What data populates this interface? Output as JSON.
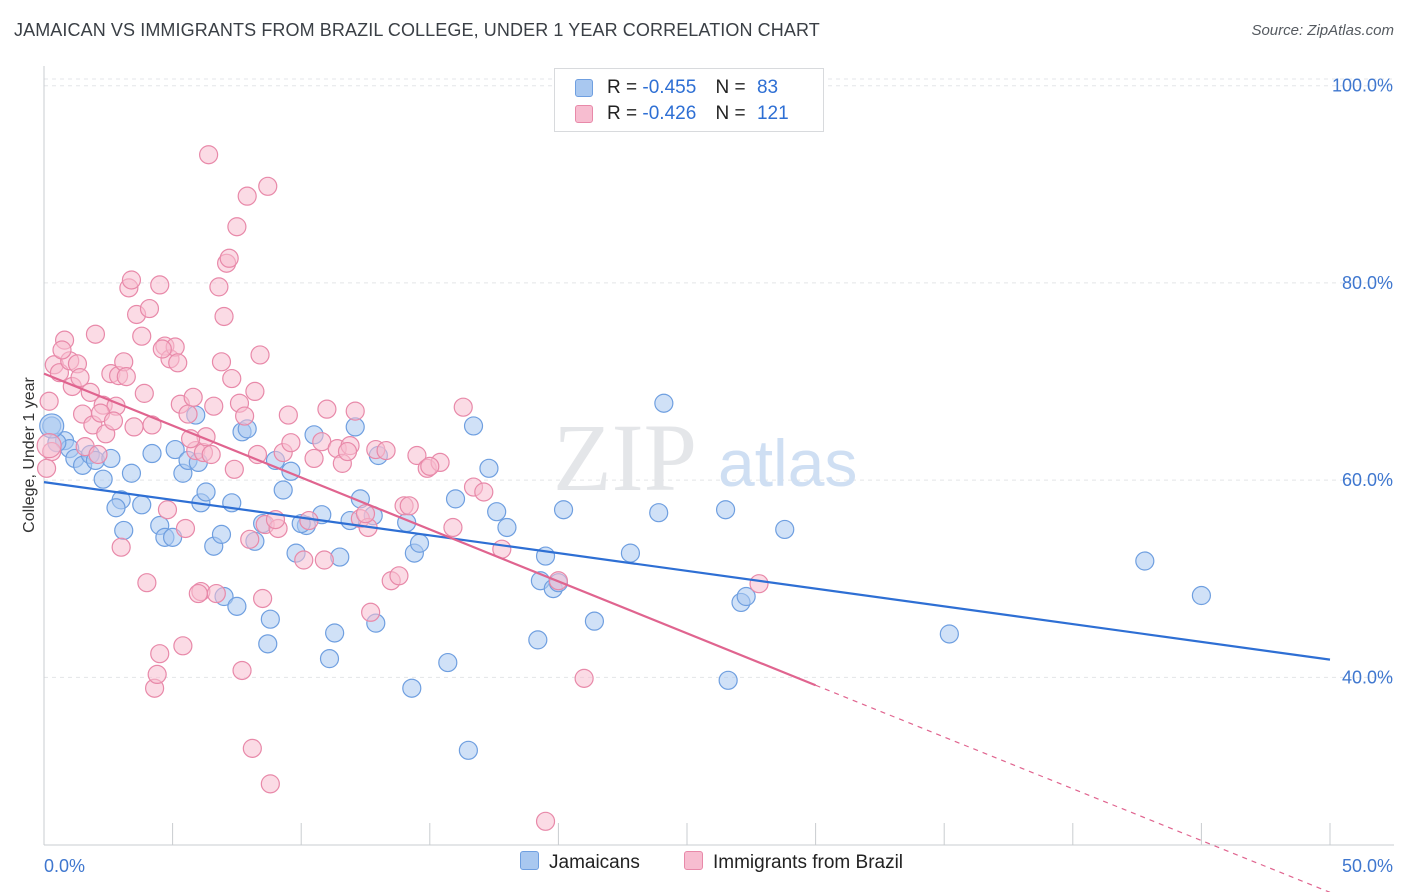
{
  "title": "JAMAICAN VS IMMIGRANTS FROM BRAZIL COLLEGE, UNDER 1 YEAR CORRELATION CHART",
  "source": "Source: ZipAtlas.com",
  "watermark": {
    "zip": "ZIP",
    "atlas": "atlas"
  },
  "legend": {
    "rows": [
      {
        "r_label": "R =",
        "r_value": "-0.455",
        "n_label": "N =",
        "n_value": "83",
        "color": "#a9c8f0",
        "border": "#6f9fe0"
      },
      {
        "r_label": "R =",
        "r_value": "-0.426",
        "n_label": "N =",
        "n_value": "121",
        "color": "#f7bdd0",
        "border": "#e889a9"
      }
    ]
  },
  "bottom_legend": [
    {
      "label": "Jamaicans",
      "color": "#a9c8f0",
      "border": "#6f9fe0"
    },
    {
      "label": "Immigrants from Brazil",
      "color": "#f7bdd0",
      "border": "#e889a9"
    }
  ],
  "chart_data": {
    "type": "scatter",
    "title": "JAMAICAN VS IMMIGRANTS FROM BRAZIL COLLEGE, UNDER 1 YEAR CORRELATION CHART",
    "xlabel": "",
    "ylabel": "College, Under 1 year",
    "xlim": [
      0,
      50
    ],
    "ylim": [
      23,
      102
    ],
    "x_tick_labels": [
      "0.0%",
      "50.0%"
    ],
    "y_ticks": [
      40,
      60,
      80,
      100
    ],
    "y_tick_labels": [
      "40.0%",
      "60.0%",
      "80.0%",
      "100.0%"
    ],
    "grid": true,
    "series": [
      {
        "name": "Jamaicans",
        "color": "#6f9fe0",
        "fill": "#a9c8f0",
        "line_color": "#2e6fd4",
        "trend": {
          "x0": 0,
          "y0": 59.8,
          "x1": 50,
          "y1": 41.8
        },
        "points": [
          [
            0.3,
            65.5
          ],
          [
            0.8,
            64.0
          ],
          [
            1.0,
            63.2
          ],
          [
            1.2,
            62.2
          ],
          [
            1.5,
            61.5
          ],
          [
            1.8,
            62.6
          ],
          [
            2.0,
            62.0
          ],
          [
            2.3,
            60.1
          ],
          [
            2.6,
            62.2
          ],
          [
            3.0,
            58.0
          ],
          [
            3.4,
            60.7
          ],
          [
            3.1,
            54.9
          ],
          [
            3.8,
            57.5
          ],
          [
            4.2,
            62.7
          ],
          [
            4.5,
            55.4
          ],
          [
            4.7,
            54.2
          ],
          [
            5.0,
            54.2
          ],
          [
            5.1,
            63.1
          ],
          [
            5.4,
            60.7
          ],
          [
            5.6,
            62.0
          ],
          [
            5.9,
            66.6
          ],
          [
            6.1,
            57.7
          ],
          [
            6.3,
            58.8
          ],
          [
            6.6,
            53.3
          ],
          [
            6.9,
            54.5
          ],
          [
            7.0,
            48.2
          ],
          [
            7.3,
            57.7
          ],
          [
            7.5,
            47.2
          ],
          [
            7.7,
            64.9
          ],
          [
            7.9,
            65.2
          ],
          [
            8.2,
            53.8
          ],
          [
            8.5,
            55.6
          ],
          [
            8.7,
            43.4
          ],
          [
            8.8,
            45.9
          ],
          [
            9.0,
            62.0
          ],
          [
            9.3,
            59.0
          ],
          [
            9.6,
            60.9
          ],
          [
            9.8,
            52.6
          ],
          [
            10.2,
            55.4
          ],
          [
            10.5,
            64.6
          ],
          [
            10.8,
            56.5
          ],
          [
            11.1,
            41.9
          ],
          [
            11.3,
            44.5
          ],
          [
            11.5,
            52.2
          ],
          [
            11.9,
            55.9
          ],
          [
            12.1,
            65.4
          ],
          [
            12.3,
            58.1
          ],
          [
            12.8,
            56.4
          ],
          [
            13.0,
            62.5
          ],
          [
            12.9,
            45.5
          ],
          [
            14.1,
            55.7
          ],
          [
            14.4,
            52.6
          ],
          [
            14.6,
            53.6
          ],
          [
            14.3,
            38.9
          ],
          [
            15.7,
            41.5
          ],
          [
            16.0,
            58.1
          ],
          [
            16.5,
            32.6
          ],
          [
            16.7,
            65.5
          ],
          [
            17.3,
            61.2
          ],
          [
            17.6,
            56.8
          ],
          [
            19.2,
            43.8
          ],
          [
            19.3,
            49.8
          ],
          [
            19.5,
            52.3
          ],
          [
            19.8,
            49.0
          ],
          [
            20.0,
            49.6
          ],
          [
            20.2,
            57.0
          ],
          [
            21.4,
            45.7
          ],
          [
            22.8,
            52.6
          ],
          [
            23.9,
            56.7
          ],
          [
            24.1,
            67.8
          ],
          [
            26.5,
            57.0
          ],
          [
            26.6,
            39.7
          ],
          [
            27.1,
            47.6
          ],
          [
            27.3,
            48.2
          ],
          [
            28.8,
            55.0
          ],
          [
            35.2,
            44.4
          ],
          [
            42.8,
            51.8
          ],
          [
            45.0,
            48.3
          ],
          [
            2.8,
            57.2
          ],
          [
            6.0,
            61.8
          ],
          [
            10.0,
            55.6
          ],
          [
            18.0,
            55.2
          ],
          [
            0.5,
            63.8
          ]
        ]
      },
      {
        "name": "Immigrants from Brazil",
        "color": "#e889a9",
        "fill": "#f7bdd0",
        "line_color": "#e0648f",
        "trend": {
          "x0": 0,
          "y0": 70.8,
          "x1": 30,
          "y1": 39.2
        },
        "trend_dashed": {
          "x0": 30,
          "y0": 39.2,
          "x1": 50,
          "y1": 18.2
        },
        "points": [
          [
            0.2,
            68.0
          ],
          [
            0.4,
            71.7
          ],
          [
            0.6,
            70.9
          ],
          [
            0.8,
            74.2
          ],
          [
            1.0,
            72.1
          ],
          [
            1.1,
            69.5
          ],
          [
            1.3,
            71.8
          ],
          [
            1.5,
            66.7
          ],
          [
            1.6,
            63.4
          ],
          [
            1.8,
            68.9
          ],
          [
            1.9,
            65.6
          ],
          [
            2.0,
            74.8
          ],
          [
            2.1,
            62.6
          ],
          [
            2.3,
            67.6
          ],
          [
            2.4,
            64.7
          ],
          [
            2.6,
            70.8
          ],
          [
            2.8,
            67.5
          ],
          [
            2.9,
            70.6
          ],
          [
            3.0,
            53.2
          ],
          [
            3.1,
            72.0
          ],
          [
            3.3,
            79.5
          ],
          [
            3.4,
            80.3
          ],
          [
            3.6,
            76.8
          ],
          [
            3.8,
            74.6
          ],
          [
            3.9,
            68.8
          ],
          [
            4.0,
            49.6
          ],
          [
            4.1,
            77.4
          ],
          [
            4.2,
            65.6
          ],
          [
            4.3,
            38.9
          ],
          [
            4.4,
            40.3
          ],
          [
            4.5,
            42.4
          ],
          [
            4.5,
            79.8
          ],
          [
            4.7,
            73.6
          ],
          [
            4.9,
            72.3
          ],
          [
            5.1,
            73.5
          ],
          [
            5.2,
            71.9
          ],
          [
            5.3,
            67.7
          ],
          [
            5.4,
            43.2
          ],
          [
            5.5,
            55.1
          ],
          [
            5.6,
            66.7
          ],
          [
            5.8,
            68.4
          ],
          [
            5.9,
            63.0
          ],
          [
            6.1,
            48.7
          ],
          [
            6.2,
            62.8
          ],
          [
            6.3,
            64.4
          ],
          [
            6.4,
            93.0
          ],
          [
            6.6,
            67.5
          ],
          [
            6.7,
            48.5
          ],
          [
            6.8,
            79.6
          ],
          [
            6.9,
            72.0
          ],
          [
            7.0,
            76.6
          ],
          [
            7.1,
            82.0
          ],
          [
            7.2,
            82.5
          ],
          [
            7.4,
            61.1
          ],
          [
            7.5,
            85.7
          ],
          [
            7.6,
            67.8
          ],
          [
            7.7,
            40.7
          ],
          [
            7.8,
            66.5
          ],
          [
            7.9,
            88.8
          ],
          [
            8.0,
            54.0
          ],
          [
            8.1,
            32.8
          ],
          [
            8.3,
            62.6
          ],
          [
            8.4,
            72.7
          ],
          [
            8.5,
            48.0
          ],
          [
            8.6,
            55.5
          ],
          [
            8.7,
            89.8
          ],
          [
            8.8,
            29.2
          ],
          [
            9.1,
            55.1
          ],
          [
            9.3,
            62.8
          ],
          [
            9.6,
            63.8
          ],
          [
            10.1,
            51.9
          ],
          [
            10.3,
            55.9
          ],
          [
            10.8,
            63.9
          ],
          [
            11.0,
            67.2
          ],
          [
            11.4,
            63.2
          ],
          [
            11.6,
            61.7
          ],
          [
            11.9,
            63.5
          ],
          [
            12.1,
            67.0
          ],
          [
            12.3,
            56.1
          ],
          [
            12.6,
            55.2
          ],
          [
            12.7,
            46.6
          ],
          [
            13.5,
            49.8
          ],
          [
            13.8,
            50.3
          ],
          [
            14.0,
            57.4
          ],
          [
            14.5,
            62.5
          ],
          [
            14.9,
            61.2
          ],
          [
            15.4,
            61.8
          ],
          [
            15.9,
            55.2
          ],
          [
            16.3,
            67.4
          ],
          [
            16.7,
            59.3
          ],
          [
            17.1,
            58.8
          ],
          [
            19.5,
            25.4
          ],
          [
            20.0,
            49.8
          ],
          [
            21.0,
            39.9
          ],
          [
            27.8,
            49.5
          ],
          [
            0.3,
            62.9
          ],
          [
            0.7,
            73.2
          ],
          [
            1.4,
            70.4
          ],
          [
            2.2,
            66.8
          ],
          [
            2.7,
            66.0
          ],
          [
            3.2,
            70.5
          ],
          [
            3.5,
            65.4
          ],
          [
            4.6,
            73.3
          ],
          [
            5.7,
            64.2
          ],
          [
            6.5,
            62.6
          ],
          [
            7.3,
            70.3
          ],
          [
            8.2,
            69.0
          ],
          [
            9.0,
            56.0
          ],
          [
            10.5,
            62.2
          ],
          [
            11.8,
            62.9
          ],
          [
            12.9,
            63.1
          ],
          [
            13.3,
            63.0
          ],
          [
            14.2,
            57.4
          ],
          [
            15.0,
            61.4
          ],
          [
            17.8,
            53.0
          ],
          [
            4.8,
            57.0
          ],
          [
            6.0,
            48.5
          ],
          [
            9.5,
            66.6
          ],
          [
            10.9,
            51.9
          ],
          [
            12.5,
            56.6
          ],
          [
            0.1,
            61.2
          ]
        ]
      }
    ]
  }
}
